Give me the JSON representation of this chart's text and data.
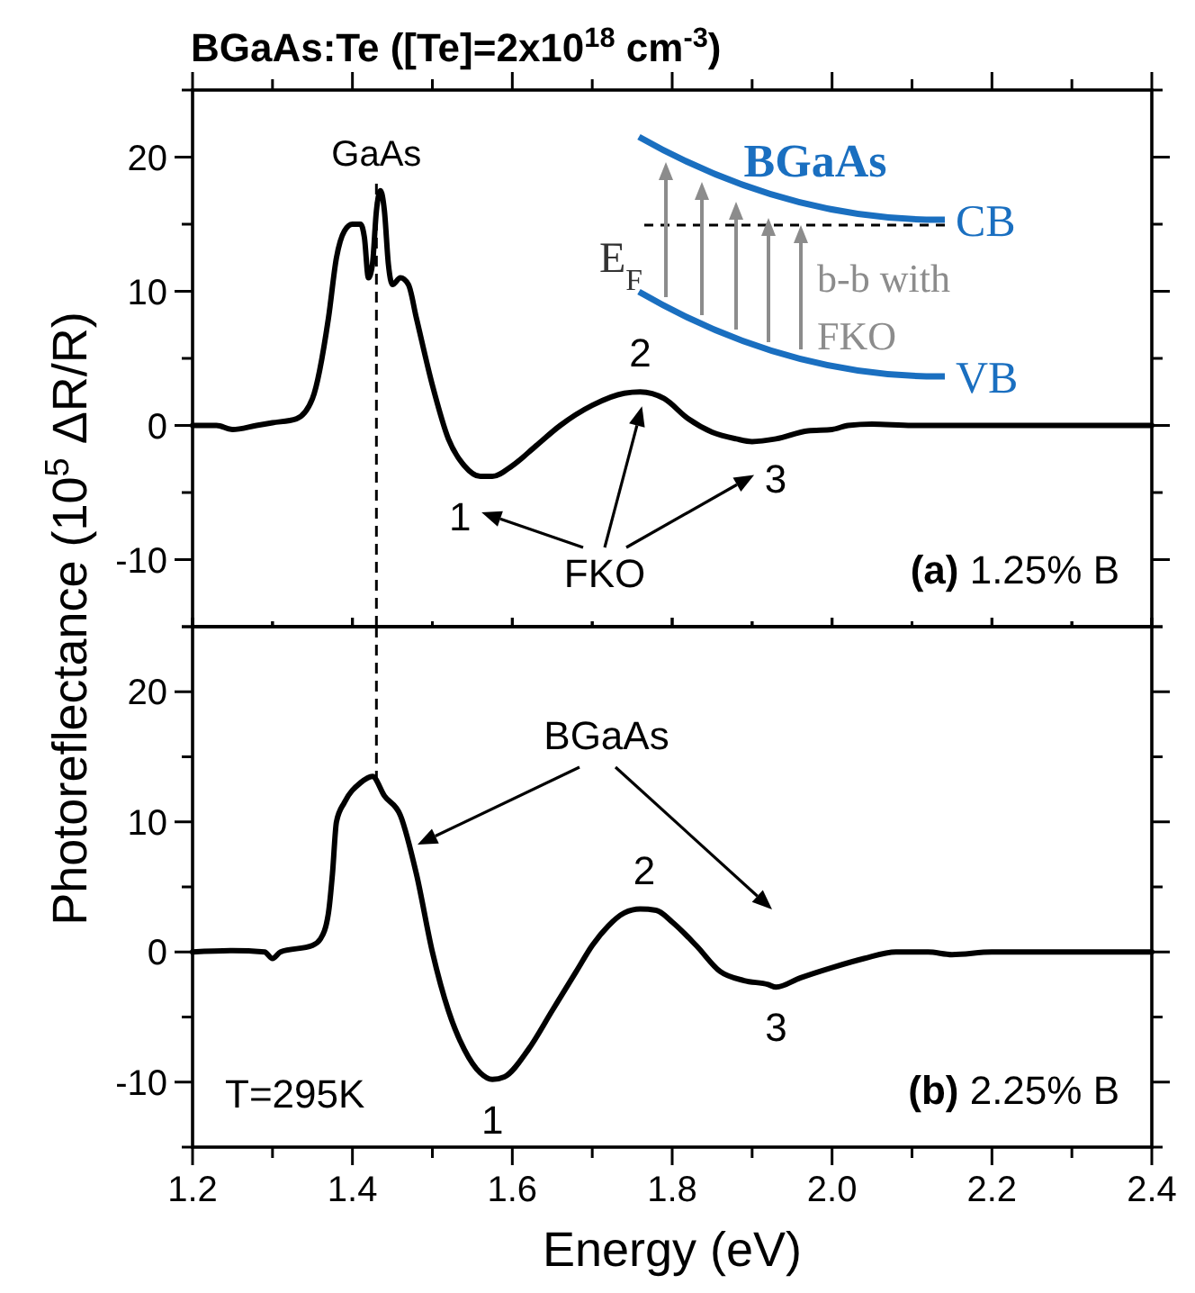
{
  "chart_data": [
    {
      "type": "line",
      "title": "BGaAs:Te ([Te]=2x10$^{18}$ cm$^{-3}$)",
      "ylabel": "Photoreflectance (10$^{5}$ ΔR/R)",
      "xlim": [
        1.2,
        2.4
      ],
      "xticks": [
        1.2,
        {
          "value": 1.3,
          "label": null
        },
        1.4,
        {
          "value": 1.5,
          "label": null
        },
        1.6,
        {
          "value": 1.7,
          "label": null
        },
        1.8,
        {
          "value": 1.9,
          "label": null
        },
        2.0,
        {
          "value": 2.1,
          "label": null
        },
        2.2,
        {
          "value": 2.3,
          "label": null
        },
        2.4
      ],
      "ylim": [
        -15,
        25
      ],
      "yticks": [
        {
          "value": -15,
          "label": null
        },
        -10,
        {
          "value": -5,
          "label": null
        },
        0,
        {
          "value": 5,
          "label": null
        },
        10,
        {
          "value": 15,
          "label": null
        },
        20,
        {
          "value": 25,
          "label": null
        }
      ],
      "tick_labels": "y",
      "grid": false,
      "series": [
        {
          "color": "#000000",
          "x": [
            1.2,
            1.23,
            1.25,
            1.28,
            1.3,
            1.33,
            1.35,
            1.37,
            1.38,
            1.39,
            1.4,
            1.41,
            1.415,
            1.42,
            1.425,
            1.43,
            1.435,
            1.44,
            1.445,
            1.45,
            1.46,
            1.47,
            1.48,
            1.5,
            1.52,
            1.54,
            1.56,
            1.575,
            1.6,
            1.63,
            1.66,
            1.7,
            1.74,
            1.76,
            1.79,
            1.82,
            1.85,
            1.88,
            1.9,
            1.93,
            1.97,
            2.0,
            2.02,
            2.05,
            2.1,
            2.2,
            2.3,
            2.4
          ],
          "values": [
            0,
            0,
            -0.3,
            0,
            0.2,
            0.5,
            2,
            8,
            12.5,
            14.5,
            15,
            15,
            14,
            11,
            12,
            16,
            17.5,
            16,
            12,
            10.5,
            11,
            10.5,
            8,
            3,
            -1,
            -3,
            -3.8,
            -3.8,
            -3,
            -1.5,
            0,
            1.5,
            2.4,
            2.5,
            2,
            0.5,
            -0.5,
            -1,
            -1.2,
            -1,
            -0.4,
            -0.3,
            0,
            0.1,
            0,
            0,
            0,
            0
          ]
        }
      ],
      "ref_lines": [
        {
          "axis": "x",
          "value": 1.43,
          "label": "GaAs",
          "line_style": "dashed",
          "color": "#000000"
        }
      ],
      "annotations": [
        {
          "text": "1",
          "x": 1.575,
          "y": -3.8
        },
        {
          "text": "2",
          "x": 1.76,
          "y": 2.5
        },
        {
          "text": "3",
          "x": 1.88,
          "y": -1
        },
        "FKO",
        "(a) 1.25% B",
        "BGaAs",
        "CB",
        "VB",
        "E$_{F}$",
        "b-b with FKO"
      ]
    },
    {
      "type": "line",
      "xlabel": "Energy (eV)",
      "xlim": [
        1.2,
        2.4
      ],
      "xticks": [
        1.2,
        {
          "value": 1.3,
          "label": null
        },
        1.4,
        {
          "value": 1.5,
          "label": null
        },
        1.6,
        {
          "value": 1.7,
          "label": null
        },
        1.8,
        {
          "value": 1.9,
          "label": null
        },
        {
          "value": 2,
          "label": "2.0"
        },
        {
          "value": 2.1,
          "label": null
        },
        2.2,
        {
          "value": 2.3,
          "label": null
        },
        2.4
      ],
      "ylim": [
        -15,
        25
      ],
      "yticks": [
        {
          "value": -15,
          "label": null
        },
        -10,
        {
          "value": -5,
          "label": null
        },
        0,
        {
          "value": 5,
          "label": null
        },
        10,
        {
          "value": 15,
          "label": null
        },
        20,
        {
          "value": 25,
          "label": null
        }
      ],
      "grid": false,
      "series": [
        {
          "color": "#000000",
          "x": [
            1.2,
            1.25,
            1.29,
            1.3,
            1.31,
            1.35,
            1.36,
            1.37,
            1.375,
            1.38,
            1.39,
            1.41,
            1.425,
            1.44,
            1.46,
            1.48,
            1.5,
            1.52,
            1.54,
            1.56,
            1.575,
            1.59,
            1.62,
            1.65,
            1.68,
            1.7,
            1.72,
            1.74,
            1.76,
            1.78,
            1.8,
            1.83,
            1.86,
            1.89,
            1.92,
            1.93,
            1.96,
            2.0,
            2.04,
            2.08,
            2.12,
            2.15,
            2.2,
            2.3,
            2.4
          ],
          "values": [
            0,
            0.1,
            0,
            -0.5,
            0,
            0.5,
            1,
            3,
            6,
            10,
            11.5,
            13,
            13.5,
            12,
            10.5,
            6,
            0,
            -4.5,
            -7.5,
            -9.3,
            -9.8,
            -9.6,
            -7.5,
            -4.5,
            -1.5,
            0.5,
            2,
            3,
            3.3,
            3.2,
            2.3,
            0.5,
            -1.5,
            -2.2,
            -2.5,
            -2.7,
            -2,
            -1.2,
            -0.5,
            0,
            0,
            -0.2,
            0,
            0,
            0
          ]
        }
      ],
      "ref_lines": [
        {
          "axis": "x",
          "value": 1.43,
          "line_style": "dashed",
          "color": "#000000"
        }
      ],
      "annotations": [
        {
          "text": "1",
          "x": 1.575,
          "y": -9.8
        },
        {
          "text": "2",
          "x": 1.765,
          "y": 3.3
        },
        {
          "text": "3",
          "x": 1.93,
          "y": -2.7
        },
        "BGaAs",
        "(b) 2.25% B",
        "T=295K"
      ]
    }
  ]
}
